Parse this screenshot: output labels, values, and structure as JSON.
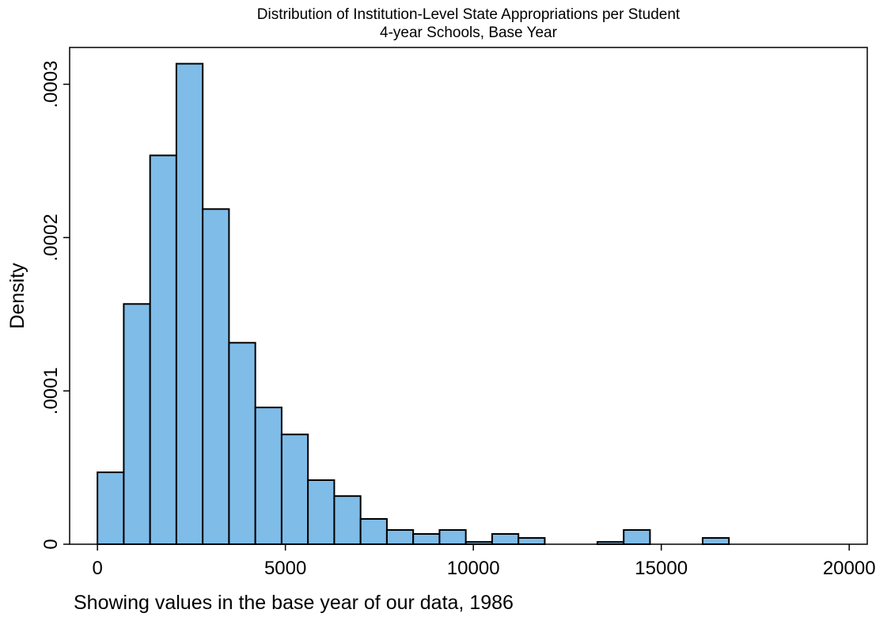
{
  "chart_data": {
    "type": "histogram",
    "title": "Distribution of Institution-Level State Appropriations per Student",
    "subtitle": "4-year Schools, Base Year",
    "xlabel": "Showing values in the base year of our data, 1986",
    "ylabel": "Density",
    "bins": [
      0,
      700,
      1400,
      2100,
      2800,
      3500,
      4200,
      4900,
      5600,
      6300,
      7000,
      7700,
      8400,
      9100,
      9800,
      10500,
      11200,
      11900,
      12600,
      13300,
      14000,
      14700,
      15400,
      16100,
      16800
    ],
    "values": [
      4.69e-05,
      0.0001567,
      0.0002536,
      0.0003134,
      0.0002186,
      0.0001314,
      8.92e-05,
      7.16e-05,
      4.18e-05,
      3.14e-05,
      1.65e-05,
      9.3e-06,
      6.7e-06,
      9.3e-06,
      1.5e-06,
      6.7e-06,
      4.1e-06,
      0,
      0,
      1.5e-06,
      9.3e-06,
      0,
      0,
      4.1e-06
    ],
    "color": "#7fbce8",
    "xlim": [
      -740,
      20480
    ],
    "ylim": [
      0,
      0.000324
    ],
    "xticks": [
      0,
      5000,
      10000,
      15000,
      20000
    ],
    "yticks": [
      0,
      {
        "value": 0.0001,
        "label": ".0001"
      },
      {
        "value": 0.0002,
        "label": ".0002"
      },
      {
        "value": 0.0003,
        "label": ".0003"
      }
    ]
  }
}
